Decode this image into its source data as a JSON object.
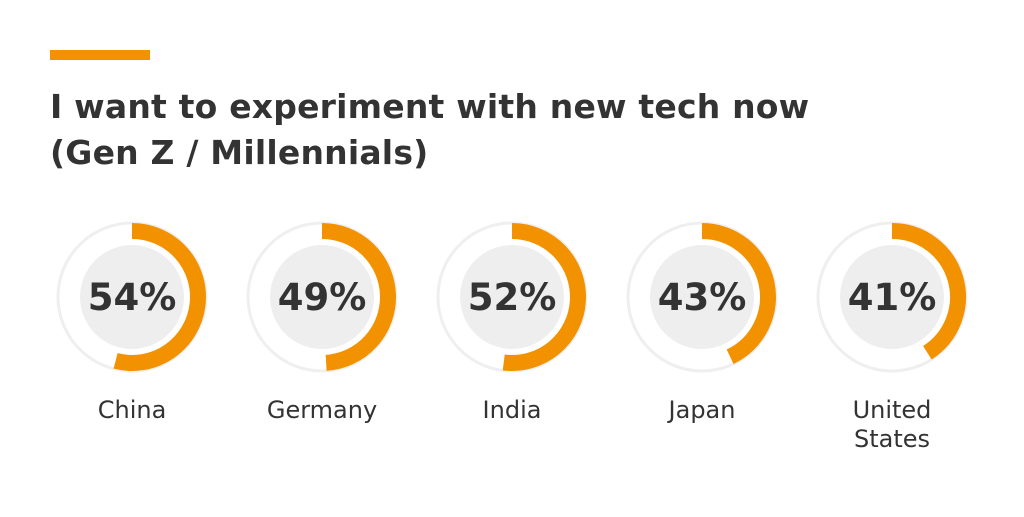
{
  "chart_data": {
    "type": "pie",
    "title": [
      "I want to experiment with new tech now",
      "(Gen Z / Millennials)"
    ],
    "series": [
      {
        "label": [
          "China"
        ],
        "value": 54,
        "display": "54%"
      },
      {
        "label": [
          "Germany"
        ],
        "value": 49,
        "display": "49%"
      },
      {
        "label": [
          "India"
        ],
        "value": 52,
        "display": "52%"
      },
      {
        "label": [
          "Japan"
        ],
        "value": 43,
        "display": "43%"
      },
      {
        "label": [
          "United",
          "States"
        ],
        "value": 41,
        "display": "41%"
      }
    ],
    "colors": {
      "accent": "#f39200",
      "track": "#efefef",
      "inner": "#eeeeee",
      "text": "#333333"
    }
  }
}
